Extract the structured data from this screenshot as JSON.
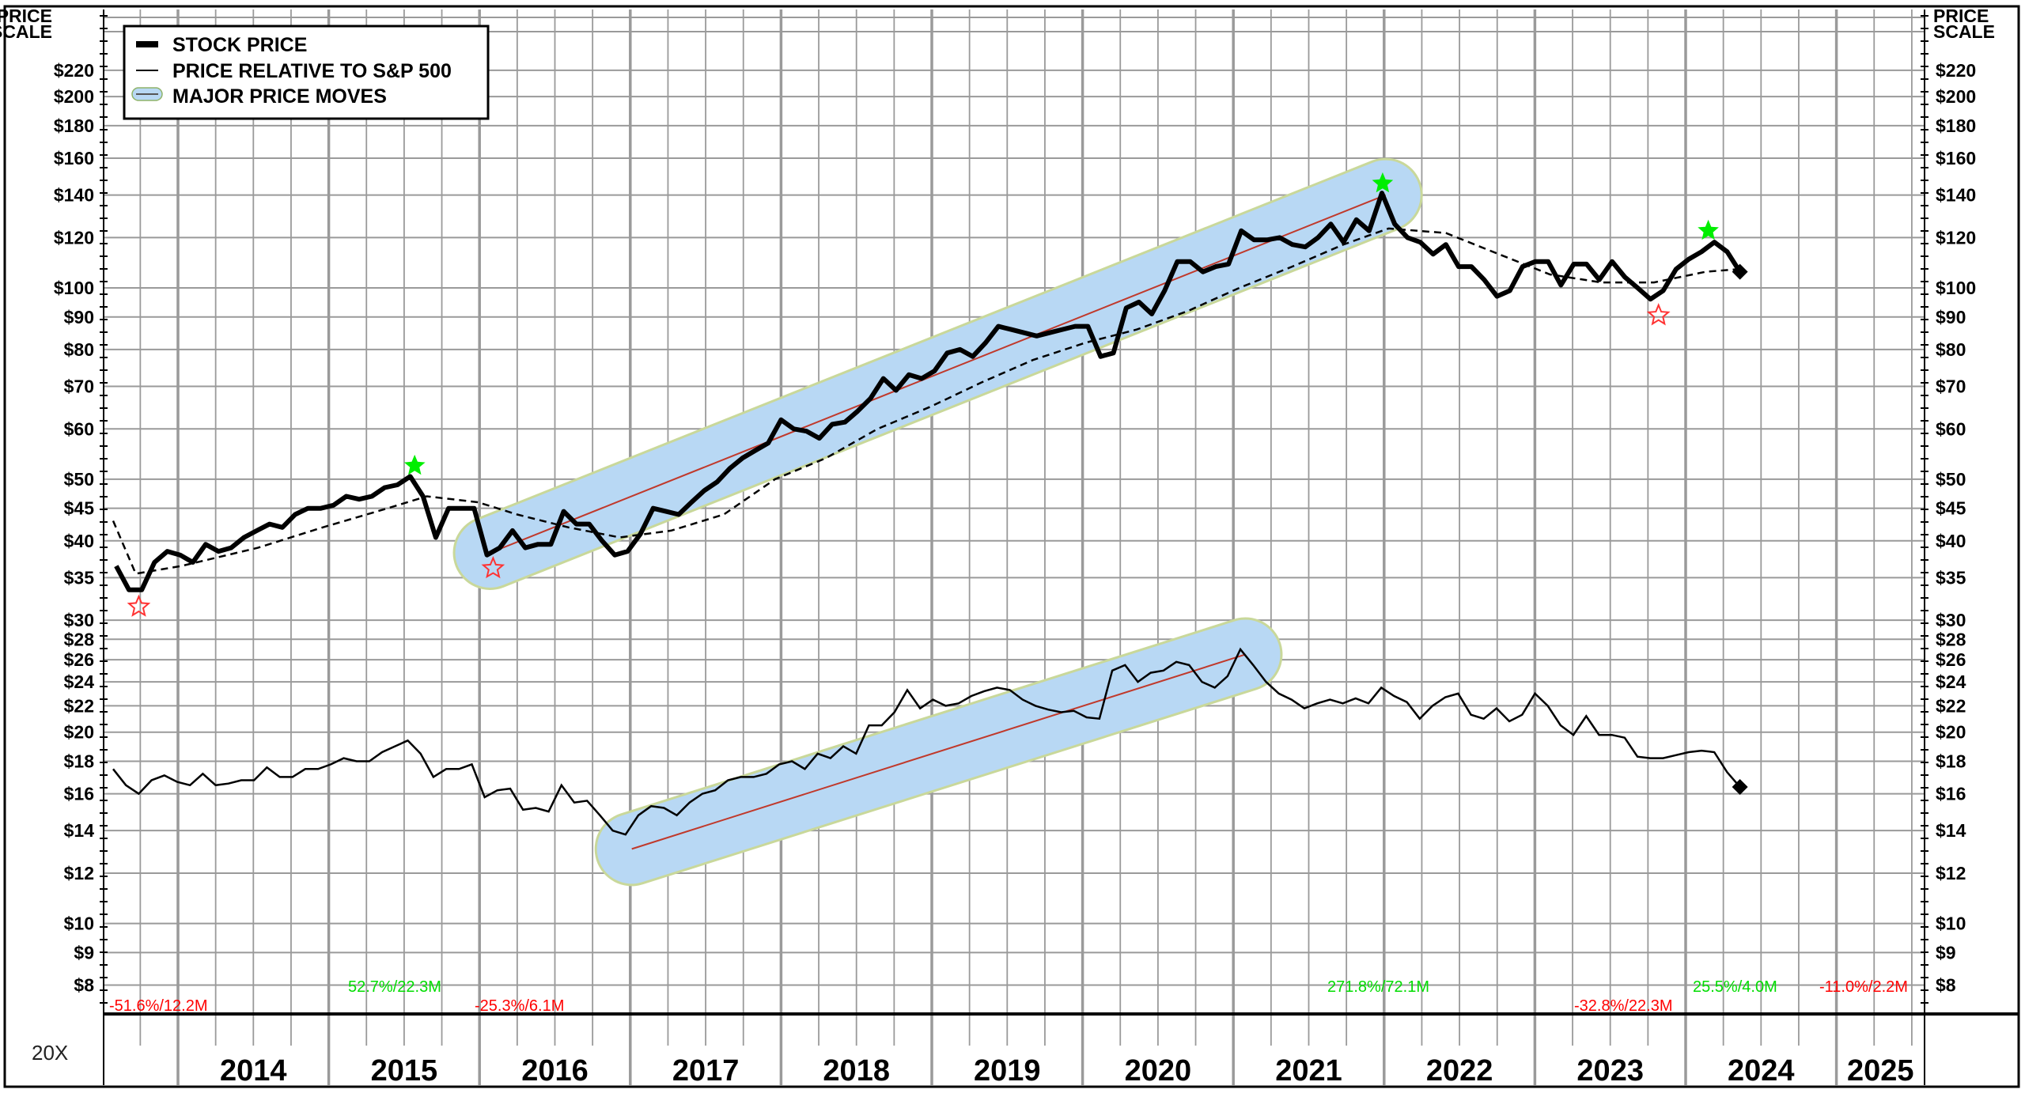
{
  "chart_data": {
    "type": "line",
    "yscale": "log",
    "ylim": [
      7.5,
      240
    ],
    "xlim": [
      2013.5,
      2025.58
    ],
    "price_scale_label": [
      "PRICE",
      "SCALE"
    ],
    "y_ticks": [
      220,
      200,
      180,
      160,
      140,
      120,
      100,
      90,
      80,
      70,
      60,
      50,
      45,
      40,
      35,
      30,
      28,
      26,
      24,
      22,
      20,
      18,
      16,
      14,
      12,
      10,
      9,
      8
    ],
    "y_tick_labels": [
      "$220",
      "$200",
      "$180",
      "$160",
      "$140",
      "$120",
      "$100",
      "$90",
      "$80",
      "$70",
      "$60",
      "$50",
      "$45",
      "$40",
      "$35",
      "$30",
      "$28",
      "$26",
      "$24",
      "$22",
      "$20",
      "$18",
      "$16",
      "$14",
      "$12",
      "$10",
      "$9",
      "$8"
    ],
    "x_tick_labels": [
      "2014",
      "2015",
      "2016",
      "2017",
      "2018",
      "2019",
      "2020",
      "2021",
      "2022",
      "2023",
      "2024",
      "2025"
    ],
    "scale_note": "20X",
    "grid": true,
    "legend": {
      "placement": "top-left",
      "items": [
        "STOCK PRICE",
        "PRICE RELATIVE TO S&P 500",
        "MAJOR PRICE MOVES"
      ]
    },
    "series": [
      {
        "name": "STOCK PRICE",
        "x_start": 2013.59,
        "x_end": 2024.36,
        "values": [
          36.5,
          33.5,
          33.5,
          37,
          38.5,
          38,
          37,
          39.5,
          38.5,
          39,
          40.5,
          41.5,
          42.5,
          42,
          44,
          45,
          45,
          45.5,
          47,
          46.5,
          47,
          48.5,
          49,
          50.5,
          47,
          40.5,
          45,
          45,
          45,
          38,
          39,
          41.5,
          39,
          39.5,
          39.5,
          44.5,
          42.5,
          42.5,
          40,
          38,
          38.5,
          41,
          45,
          44.5,
          44,
          46,
          48,
          49.5,
          52,
          54,
          55.5,
          57,
          62,
          60,
          59.5,
          58,
          61,
          61.5,
          64,
          67,
          72,
          69,
          73,
          72,
          74,
          79,
          80,
          78,
          82,
          87,
          86,
          85,
          84,
          85,
          86,
          87,
          87,
          78,
          79,
          93,
          95,
          91,
          99,
          110,
          110,
          106,
          108,
          109,
          123,
          119,
          119,
          120,
          117,
          116,
          120,
          126,
          118,
          128,
          123,
          141,
          126,
          120,
          118,
          113,
          117,
          108,
          108,
          103,
          97,
          99,
          108,
          110,
          110,
          101,
          109,
          109,
          103,
          110,
          104,
          100,
          96,
          99,
          107,
          111,
          114,
          118,
          114,
          106
        ]
      },
      {
        "name": "PRICE RELATIVE TO S&P 500",
        "x_start": 2013.57,
        "x_end": 2024.36,
        "values": [
          17.5,
          16.5,
          16,
          16.8,
          17.1,
          16.7,
          16.5,
          17.2,
          16.5,
          16.6,
          16.8,
          16.8,
          17.6,
          17,
          17,
          17.5,
          17.5,
          17.8,
          18.2,
          18,
          18,
          18.6,
          19,
          19.4,
          18.5,
          17,
          17.5,
          17.5,
          17.8,
          15.8,
          16.2,
          16.3,
          15.1,
          15.2,
          15,
          16.5,
          15.5,
          15.6,
          14.8,
          14,
          13.8,
          14.8,
          15.3,
          15.2,
          14.8,
          15.5,
          16,
          16.2,
          16.8,
          17,
          17,
          17.2,
          17.8,
          18,
          17.5,
          18.5,
          18.2,
          19,
          18.5,
          20.5,
          20.5,
          21.5,
          23.3,
          21.8,
          22.5,
          22,
          22.2,
          22.8,
          23.2,
          23.5,
          23.3,
          22.5,
          22,
          21.7,
          21.5,
          21.6,
          21.1,
          21,
          25,
          25.5,
          24,
          24.8,
          25,
          25.8,
          25.5,
          24,
          23.5,
          24.5,
          27,
          25.5,
          24,
          23,
          22.5,
          21.8,
          22.2,
          22.5,
          22.2,
          22.6,
          22.2,
          23.5,
          22.8,
          22.3,
          21,
          22,
          22.7,
          23,
          21.3,
          21,
          21.8,
          20.8,
          21.3,
          23,
          22,
          20.5,
          19.8,
          21.2,
          19.8,
          19.8,
          19.6,
          18.3,
          18.2,
          18.2,
          18.4,
          18.6,
          18.7,
          18.6,
          17.3,
          16.4
        ]
      },
      {
        "name": "moving average (dashed)",
        "points": [
          [
            2013.57,
            43
          ],
          [
            2013.72,
            35.5
          ],
          [
            2014.02,
            36.5
          ],
          [
            2014.53,
            39
          ],
          [
            2014.96,
            42
          ],
          [
            2015.39,
            45
          ],
          [
            2015.65,
            47
          ],
          [
            2015.99,
            46
          ],
          [
            2016.25,
            44
          ],
          [
            2016.59,
            42
          ],
          [
            2016.93,
            40.5
          ],
          [
            2017.27,
            41.5
          ],
          [
            2017.62,
            44
          ],
          [
            2017.96,
            50
          ],
          [
            2018.3,
            54
          ],
          [
            2018.64,
            60
          ],
          [
            2018.99,
            65
          ],
          [
            2019.33,
            71
          ],
          [
            2019.67,
            77
          ],
          [
            2020.02,
            82
          ],
          [
            2020.36,
            86
          ],
          [
            2020.7,
            92
          ],
          [
            2021.04,
            100
          ],
          [
            2021.39,
            108
          ],
          [
            2021.73,
            117
          ],
          [
            2022.03,
            124
          ],
          [
            2022.41,
            122
          ],
          [
            2022.76,
            113
          ],
          [
            2023.1,
            105
          ],
          [
            2023.44,
            102
          ],
          [
            2023.79,
            102
          ],
          [
            2024.13,
            106
          ],
          [
            2024.34,
            107
          ]
        ]
      }
    ],
    "major_price_moves": [
      {
        "start": [
          2016.07,
          38.3
        ],
        "end": [
          2022.01,
          140
        ]
      },
      {
        "start": [
          2017.01,
          13.1
        ],
        "end": [
          2021.08,
          26.5
        ]
      }
    ],
    "markers": {
      "highs": [
        [
          2015.57,
          52.5
        ],
        [
          2021.99,
          146
        ],
        [
          2024.15,
          123
        ]
      ],
      "lows": [
        [
          2013.74,
          31.5
        ],
        [
          2016.09,
          36.2
        ],
        [
          2023.82,
          90.5
        ]
      ],
      "last_stock": [
        2024.36,
        106
      ],
      "last_relative": [
        2024.36,
        16.4
      ]
    },
    "annotations": [
      {
        "text": "-51.6%/12.2M",
        "color": "#ff0000"
      },
      {
        "text": "52.7%/22.3M",
        "color": "#00dd00"
      },
      {
        "text": "-25.3%/6.1M",
        "color": "#ff0000"
      },
      {
        "text": "271.8%/72.1M",
        "color": "#00dd00"
      },
      {
        "text": "-32.8%/22.3M",
        "color": "#ff0000"
      },
      {
        "text": "25.5%/4.0M",
        "color": "#00dd00"
      },
      {
        "text": "-11.0%/2.2M",
        "color": "#ff0000"
      }
    ],
    "colors": {
      "band": "#b8d8f4",
      "band_edge": "#c9d89a",
      "trend": "#c0392b",
      "grid": "#9a9a9a",
      "high_star": "#00ee00",
      "low_star": "#ff3333"
    }
  }
}
